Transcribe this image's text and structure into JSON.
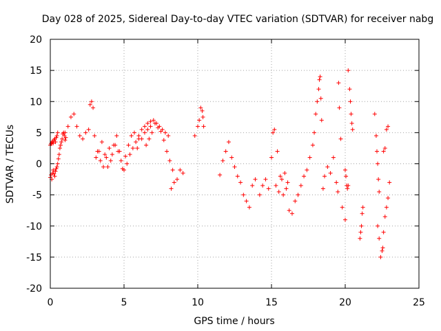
{
  "chart_data": {
    "type": "scatter",
    "title": "Day 028 of 2025, Sidereal Day-to-day VTEC variation (SDTVAR) for receiver nabg",
    "xlabel": "GPS time / hours",
    "ylabel": "SDTVAR / TECUs",
    "xlim": [
      0,
      25
    ],
    "ylim": [
      -20,
      20
    ],
    "xticks": [
      0,
      5,
      10,
      15,
      20,
      25
    ],
    "yticks": [
      -20,
      -15,
      -10,
      -5,
      0,
      5,
      10,
      15,
      20
    ],
    "xtick_labels": [
      "0",
      "5",
      "10",
      "15",
      "20",
      "25"
    ],
    "ytick_labels": [
      "-20",
      "-15",
      "-10",
      "-5",
      "0",
      "5",
      "10",
      "15",
      "20"
    ],
    "grid": true,
    "marker": "+",
    "color": "#ff0000",
    "series": [
      {
        "name": "SDTVAR",
        "x": [
          0.0,
          0.05,
          0.1,
          0.15,
          0.2,
          0.25,
          0.3,
          0.35,
          0.4,
          0.45,
          0.5,
          0.55,
          0.6,
          0.65,
          0.7,
          0.75,
          0.8,
          0.85,
          0.9,
          0.95,
          1.0,
          1.05,
          0.0,
          0.05,
          0.1,
          0.15,
          0.2,
          0.25,
          0.3,
          0.35,
          0.4,
          0.45,
          0.5,
          1.0,
          1.2,
          1.4,
          1.6,
          1.8,
          2.0,
          2.2,
          2.4,
          2.6,
          2.7,
          2.8,
          2.9,
          3.0,
          3.2,
          3.4,
          3.6,
          3.8,
          4.0,
          4.2,
          4.4,
          4.6,
          4.8,
          5.0,
          5.2,
          5.4,
          5.6,
          5.8,
          6.0,
          6.2,
          6.4,
          6.6,
          6.8,
          3.1,
          3.3,
          3.5,
          3.7,
          3.9,
          4.1,
          4.3,
          4.5,
          4.7,
          4.9,
          5.1,
          5.3,
          5.5,
          5.7,
          5.9,
          6.0,
          6.2,
          6.4,
          6.6,
          6.8,
          7.0,
          7.2,
          7.4,
          7.6,
          7.8,
          8.0,
          6.5,
          6.7,
          6.9,
          7.1,
          7.3,
          7.5,
          7.7,
          7.9,
          8.1,
          8.3,
          8.2,
          8.4,
          8.6,
          8.8,
          9.0,
          9.8,
          10.0,
          10.1,
          10.2,
          10.3,
          10.35,
          10.4,
          11.5,
          11.7,
          11.9,
          12.1,
          12.3,
          12.5,
          12.7,
          12.9,
          13.1,
          13.3,
          13.5,
          13.7,
          13.9,
          14.2,
          14.4,
          14.6,
          14.8,
          15.0,
          15.1,
          15.2,
          15.4,
          15.6,
          15.8,
          16.0,
          16.2,
          16.4,
          16.6,
          16.8,
          17.0,
          17.2,
          17.4,
          17.6,
          17.8,
          15.3,
          15.5,
          15.7,
          15.9,
          16.1,
          17.9,
          18.0,
          18.1,
          18.2,
          18.25,
          18.3,
          18.35,
          18.4,
          18.5,
          18.6,
          18.8,
          19.0,
          19.2,
          19.4,
          19.5,
          19.55,
          19.6,
          19.7,
          19.8,
          20.0,
          20.2,
          20.0,
          20.05,
          20.1,
          20.15,
          20.2,
          20.3,
          20.35,
          20.4,
          20.45,
          20.5,
          21.0,
          21.05,
          21.1,
          21.15,
          21.2,
          22.0,
          22.1,
          22.15,
          22.2,
          22.25,
          22.3,
          22.2,
          22.3,
          22.4,
          22.5,
          22.55,
          22.6,
          22.7,
          22.8,
          22.9,
          23.0,
          22.6,
          22.7,
          22.8,
          22.9
        ],
        "y": [
          -2.2,
          -1.8,
          -2.5,
          -1.5,
          -1.0,
          -1.6,
          -2.0,
          -1.2,
          -0.8,
          -0.5,
          0.0,
          0.8,
          1.5,
          2.5,
          3.0,
          3.5,
          4.0,
          4.8,
          5.0,
          4.5,
          3.8,
          4.2,
          3.0,
          3.2,
          3.4,
          3.6,
          3.3,
          3.8,
          4.0,
          3.5,
          4.2,
          4.5,
          5.0,
          5.0,
          6.0,
          7.5,
          8.0,
          6.0,
          4.5,
          4.0,
          5.0,
          5.5,
          9.5,
          10.0,
          9.0,
          4.5,
          2.0,
          0.5,
          -0.5,
          1.0,
          2.5,
          1.5,
          3.0,
          2.0,
          0.5,
          -1.0,
          0.0,
          1.5,
          2.5,
          3.5,
          4.5,
          4.0,
          5.0,
          5.5,
          6.0,
          1.0,
          2.0,
          3.5,
          1.5,
          -0.5,
          0.5,
          3.0,
          4.5,
          2.0,
          -0.8,
          1.2,
          3.0,
          4.5,
          5.0,
          2.5,
          4.0,
          5.5,
          6.0,
          6.5,
          6.8,
          7.0,
          6.5,
          6.0,
          5.5,
          5.0,
          4.5,
          3.0,
          4.0,
          5.0,
          6.5,
          5.8,
          5.2,
          3.8,
          2.0,
          0.5,
          -1.0,
          -4.0,
          -3.0,
          -2.5,
          -1.0,
          -1.5,
          4.5,
          6.0,
          7.0,
          9.0,
          8.5,
          7.5,
          6.0,
          -1.8,
          0.5,
          2.0,
          3.5,
          1.0,
          -0.5,
          -2.0,
          -3.0,
          -5.0,
          -6.0,
          -7.0,
          -3.5,
          -2.5,
          -5.0,
          -3.5,
          -2.5,
          -4.0,
          1.0,
          5.0,
          5.5,
          2.0,
          -2.0,
          -5.0,
          -4.0,
          -7.5,
          -8.0,
          -6.0,
          -5.0,
          -3.5,
          -2.0,
          -1.0,
          1.0,
          3.0,
          -3.5,
          -4.5,
          -2.5,
          -1.5,
          -3.0,
          5.0,
          8.0,
          10.0,
          12.0,
          13.5,
          14.0,
          10.5,
          7.0,
          -4.0,
          -2.0,
          -0.5,
          -1.5,
          1.0,
          -3.0,
          -4.5,
          13.0,
          9.0,
          4.0,
          -7.0,
          -9.0,
          -3.5,
          -1.0,
          -2.0,
          -3.5,
          -4.0,
          15.0,
          12.0,
          10.0,
          8.0,
          6.5,
          5.5,
          -12.0,
          -11.0,
          -10.0,
          -8.0,
          -7.0,
          8.0,
          4.5,
          2.0,
          0.0,
          -2.5,
          -4.5,
          -10.0,
          -12.0,
          -15.0,
          -14.0,
          -13.5,
          -11.0,
          -8.5,
          -7.0,
          -5.5,
          -3.0,
          2.0,
          2.5,
          5.5,
          6.0
        ]
      }
    ]
  }
}
